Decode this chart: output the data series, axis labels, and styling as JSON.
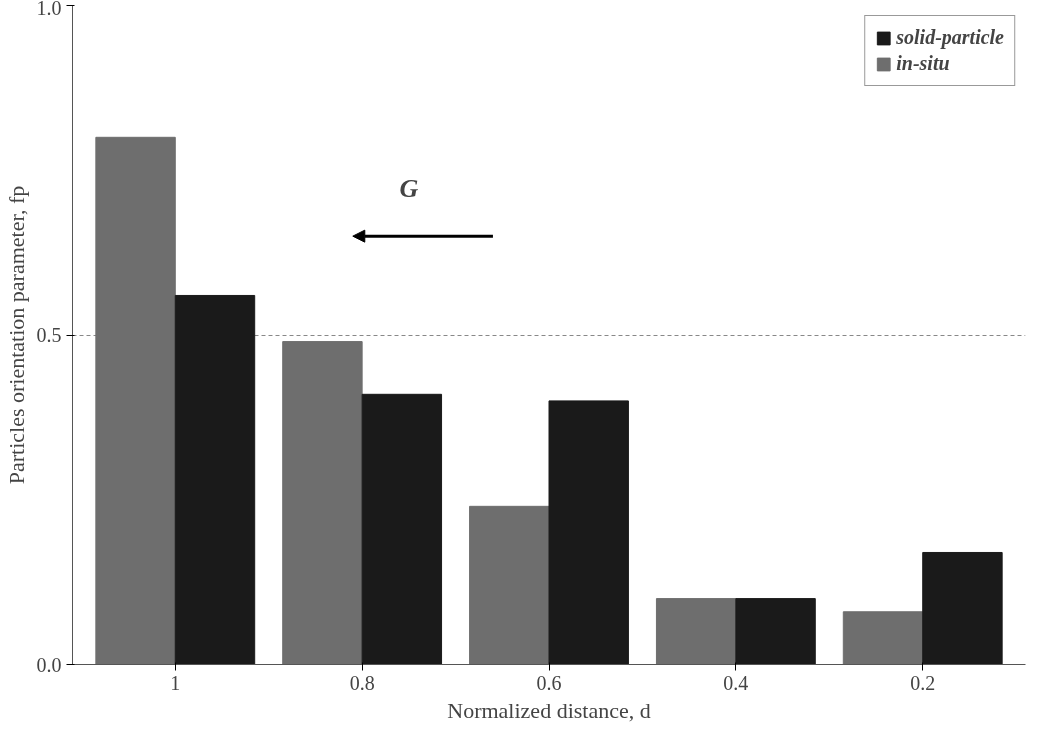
{
  "chart_data": {
    "type": "bar",
    "xlabel": "Normalized distance, d",
    "ylabel": "Particles orientation parameter, fp",
    "categories": [
      "1",
      "0.8",
      "0.6",
      "0.4",
      "0.2"
    ],
    "series": [
      {
        "name": "in-situ",
        "color": "#6e6e6e",
        "values": [
          0.8,
          0.49,
          0.24,
          0.1,
          0.08
        ]
      },
      {
        "name": "solid-particle",
        "color": "#1a1a1a",
        "values": [
          0.56,
          0.41,
          0.4,
          0.1,
          0.17
        ]
      }
    ],
    "ylim": [
      0,
      1
    ],
    "yticks": [
      {
        "value": 0,
        "label": "0.0"
      },
      {
        "value": 0.5,
        "label": "0.5"
      },
      {
        "value": 1,
        "label": "1.0"
      }
    ],
    "grid": "y",
    "legend": "top right",
    "annotations": [
      "G"
    ]
  }
}
